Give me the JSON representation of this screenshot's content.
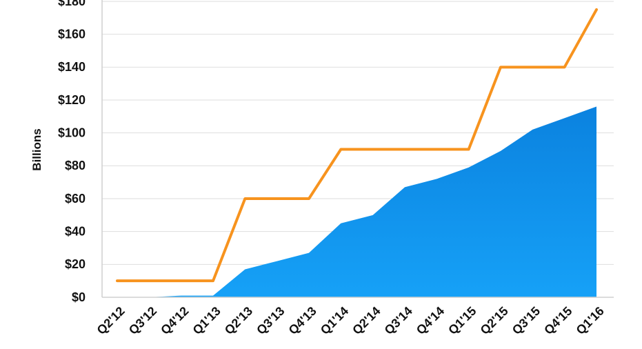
{
  "chart_data": {
    "type": "area",
    "title": "",
    "xlabel": "",
    "ylabel": "Billions",
    "categories": [
      "Q2'12",
      "Q3'12",
      "Q4'12",
      "Q1'13",
      "Q2'13",
      "Q3'13",
      "Q4'13",
      "Q1'14",
      "Q2'14",
      "Q3'14",
      "Q4'14",
      "Q1'15",
      "Q2'15",
      "Q3'15",
      "Q4'15",
      "Q1'16"
    ],
    "ylim": [
      0,
      180
    ],
    "yticks": [
      "$0",
      "$20",
      "$40",
      "$60",
      "$80",
      "$100",
      "$120",
      "$140",
      "$160",
      "$180"
    ],
    "ytick_values": [
      0,
      20,
      40,
      60,
      80,
      100,
      120,
      140,
      160,
      180
    ],
    "grid": true,
    "series": [
      {
        "type": "area",
        "color": "#1a8fe3",
        "values": [
          0,
          0,
          1,
          1,
          17,
          22,
          27,
          45,
          50,
          67,
          72,
          79,
          89,
          102,
          109,
          116
        ]
      },
      {
        "type": "line",
        "color": "#f7931e",
        "values": [
          10,
          10,
          10,
          10,
          60,
          60,
          60,
          90,
          90,
          90,
          90,
          90,
          140,
          140,
          140,
          175
        ]
      }
    ]
  }
}
